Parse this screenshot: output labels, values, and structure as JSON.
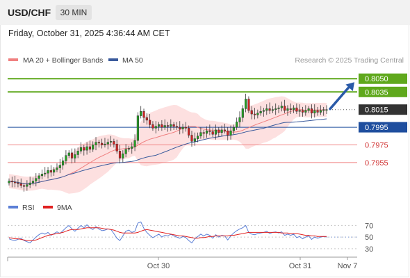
{
  "header": {
    "pair": "USD/CHF",
    "timeframe": "30 MIN",
    "datetime": "Friday, October 31, 2025 4:36:44 AM CET"
  },
  "legend": {
    "ma20_bb": "MA 20 + Bollinger Bands",
    "ma50": "MA 50",
    "copyright": "Research © 2025 Trading Central"
  },
  "colors": {
    "candle_up": "#22a322",
    "candle_down": "#d32020",
    "ma20": "#f08080",
    "bollinger_fill": "#fde0e0",
    "ma50": "#3a5a9c",
    "resistance": "#5fa81c",
    "pivot": "#1f4e9e",
    "support": "#f08080",
    "last_price": "#333333",
    "rsi": "#5b7fd6",
    "rsi_ma": "#e02020",
    "arrow": "#2a5aa8"
  },
  "chart_data": [
    {
      "type": "candlestick",
      "title": "USD/CHF",
      "x_tick_labels": [
        "Oct 30",
        "Oct 31",
        "Nov 7"
      ],
      "ylim": [
        0.7925,
        0.8062
      ],
      "levels": [
        {
          "name": "resistance_2",
          "value": 0.805,
          "label": "0.8050"
        },
        {
          "name": "resistance_1",
          "value": 0.8035,
          "label": "0.8035"
        },
        {
          "name": "last_price",
          "value": 0.8015,
          "label": "0.8015"
        },
        {
          "name": "pivot",
          "value": 0.7995,
          "label": "0.7995"
        },
        {
          "name": "support_1",
          "value": 0.7975,
          "label": "0.7975"
        },
        {
          "name": "support_2",
          "value": 0.7955,
          "label": "0.7955"
        }
      ],
      "close": [
        0.7934,
        0.7933,
        0.7932,
        0.7931,
        0.7929,
        0.7928,
        0.793,
        0.7932,
        0.7934,
        0.7937,
        0.794,
        0.7942,
        0.7943,
        0.7946,
        0.7944,
        0.7947,
        0.7949,
        0.7952,
        0.7957,
        0.7963,
        0.7966,
        0.796,
        0.7964,
        0.7968,
        0.7972,
        0.7969,
        0.7973,
        0.797,
        0.7975,
        0.7978,
        0.7977,
        0.7975,
        0.7976,
        0.7978,
        0.7979,
        0.7976,
        0.7968,
        0.796,
        0.7965,
        0.797,
        0.7971,
        0.7973,
        0.798,
        0.8008,
        0.8013,
        0.8006,
        0.8003,
        0.7998,
        0.7994,
        0.7996,
        0.7998,
        0.7995,
        0.7997,
        0.7996,
        0.7998,
        0.7996,
        0.7995,
        0.7993,
        0.7995,
        0.7994,
        0.7986,
        0.7979,
        0.7982,
        0.7985,
        0.7989,
        0.7988,
        0.7991,
        0.799,
        0.7987,
        0.7992,
        0.7989,
        0.7992,
        0.7991,
        0.7986,
        0.7991,
        0.7995,
        0.8001,
        0.8006,
        0.8016,
        0.8027,
        0.8014,
        0.801,
        0.8009,
        0.8011,
        0.8013,
        0.8014,
        0.8016,
        0.8014,
        0.8015,
        0.8016,
        0.8017,
        0.8019,
        0.8014,
        0.8016,
        0.8015,
        0.8017,
        0.8013,
        0.8014,
        0.8012,
        0.8014,
        0.8016,
        0.8011,
        0.8014,
        0.8012,
        0.8014,
        0.8015,
        0.8015
      ],
      "bollinger": {
        "upper_max": 0.8025,
        "lower_min": 0.7943
      },
      "arrow": {
        "from": 0.8015,
        "to": 0.805
      }
    },
    {
      "type": "line",
      "title": "RSI",
      "series": [
        {
          "name": "RSI"
        },
        {
          "name": "9MA"
        }
      ],
      "y_tick_labels": [
        "70",
        "50",
        "30"
      ],
      "ylim": [
        25,
        80
      ],
      "rsi": [
        47,
        45,
        44,
        46,
        48,
        44,
        42,
        40,
        45,
        50,
        54,
        57,
        55,
        58,
        53,
        56,
        59,
        56,
        61,
        66,
        70,
        64,
        60,
        65,
        70,
        66,
        71,
        66,
        63,
        68,
        64,
        61,
        62,
        64,
        63,
        56,
        48,
        44,
        52,
        60,
        62,
        58,
        60,
        74,
        76,
        65,
        58,
        53,
        49,
        52,
        55,
        50,
        53,
        52,
        55,
        52,
        50,
        48,
        51,
        49,
        44,
        40,
        47,
        51,
        55,
        52,
        55,
        53,
        48,
        54,
        50,
        53,
        52,
        45,
        52,
        57,
        61,
        64,
        66,
        70,
        58,
        55,
        54,
        56,
        57,
        58,
        60,
        56,
        58,
        59,
        57,
        59,
        53,
        55,
        53,
        55,
        49,
        51,
        47,
        50,
        52,
        46,
        50,
        48,
        50,
        51,
        50
      ],
      "rsi_ma": [
        49,
        48,
        47,
        47,
        46,
        45,
        44,
        44,
        44,
        45,
        47,
        49,
        51,
        53,
        54,
        55,
        56,
        57,
        58,
        60,
        62,
        63,
        63,
        63,
        64,
        65,
        66,
        66,
        66,
        66,
        66,
        65,
        64,
        64,
        63,
        62,
        60,
        58,
        57,
        57,
        57,
        57,
        57,
        58,
        60,
        62,
        63,
        62,
        61,
        60,
        59,
        58,
        57,
        56,
        55,
        54,
        53,
        52,
        52,
        51,
        50,
        49,
        48,
        48,
        49,
        49,
        50,
        51,
        51,
        52,
        52,
        52,
        52,
        52,
        53,
        53,
        54,
        55,
        56,
        57,
        58,
        58,
        58,
        58,
        58,
        58,
        58,
        58,
        58,
        58,
        58,
        57,
        57,
        57,
        56,
        56,
        56,
        55,
        54,
        53,
        53,
        52,
        52,
        51,
        51,
        51,
        51
      ]
    }
  ]
}
